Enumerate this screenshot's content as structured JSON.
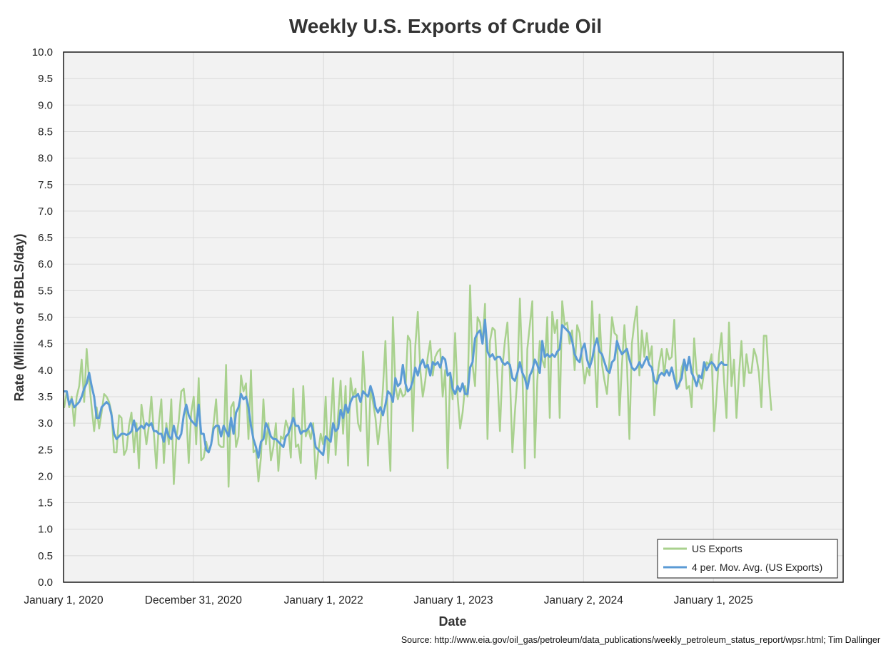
{
  "chart_data": {
    "type": "line",
    "title": "Weekly U.S. Exports of Crude Oil",
    "xlabel": "Date",
    "ylabel": "Rate (Millions of BBLS/day)",
    "source": "Source: http://www.eia.gov/oil_gas/petroleum/data_publications/weekly_petroleum_status_report/wpsr.html; Tim Dallinger",
    "ylim": [
      0,
      10
    ],
    "ytick_step": 0.5,
    "yticks": [
      "0.0",
      "0.5",
      "1.0",
      "1.5",
      "2.0",
      "2.5",
      "3.0",
      "3.5",
      "4.0",
      "4.5",
      "5.0",
      "5.5",
      "6.0",
      "6.5",
      "7.0",
      "7.5",
      "8.0",
      "8.5",
      "9.0",
      "9.5",
      "10.0"
    ],
    "xlim": [
      "2020-01-01",
      "2026-01-01"
    ],
    "xticks": [
      {
        "date": "2020-01-01",
        "label": "January 1, 2020"
      },
      {
        "date": "2020-12-31",
        "label": "December 31, 2020"
      },
      {
        "date": "2022-01-01",
        "label": "January 1, 2022"
      },
      {
        "date": "2023-01-01",
        "label": "January 1, 2023"
      },
      {
        "date": "2024-01-02",
        "label": "January 2, 2024"
      },
      {
        "date": "2025-01-01",
        "label": "January 1, 2025"
      }
    ],
    "grid": true,
    "legend_position": "bottom-right",
    "colors": {
      "exports": "#a9d18e",
      "moving_avg": "#5b9bd5",
      "plot_bg": "#f2f2f2",
      "grid": "#d9d9d9"
    },
    "series": [
      {
        "name": "US Exports",
        "start_date": "2020-01-03",
        "interval_days": 7,
        "values": [
          3.3,
          3.6,
          3.3,
          3.5,
          2.95,
          3.5,
          3.7,
          4.2,
          3.4,
          4.4,
          3.8,
          3.3,
          2.85,
          3.3,
          2.9,
          3.2,
          3.55,
          3.5,
          3.4,
          3.2,
          2.45,
          2.45,
          3.15,
          3.1,
          2.4,
          2.5,
          2.95,
          3.2,
          2.45,
          3.0,
          2.15,
          3.35,
          3.0,
          2.6,
          2.95,
          3.5,
          2.8,
          2.15,
          3.0,
          3.45,
          2.25,
          3.0,
          2.6,
          3.45,
          1.85,
          2.7,
          3.05,
          3.6,
          3.65,
          3.2,
          2.25,
          3.2,
          3.5,
          2.6,
          3.85,
          2.3,
          2.35,
          2.65,
          2.45,
          2.6,
          3.0,
          3.45,
          2.6,
          2.55,
          2.55,
          4.1,
          1.8,
          3.3,
          3.4,
          2.55,
          2.75,
          3.9,
          3.6,
          3.75,
          2.7,
          4.0,
          2.45,
          2.5,
          1.9,
          2.35,
          3.45,
          2.6,
          3.0,
          2.3,
          2.55,
          3.0,
          2.1,
          2.75,
          2.7,
          3.05,
          2.9,
          2.35,
          3.65,
          2.55,
          2.6,
          2.25,
          3.7,
          2.75,
          2.9,
          2.7,
          3.0,
          1.95,
          2.45,
          2.8,
          2.6,
          3.5,
          2.25,
          3.0,
          3.85,
          2.4,
          3.15,
          3.8,
          2.8,
          3.7,
          2.2,
          3.85,
          3.5,
          3.65,
          3.0,
          2.85,
          4.35,
          3.55,
          2.2,
          3.65,
          3.4,
          3.1,
          2.6,
          3.0,
          3.65,
          4.55,
          3.0,
          2.1,
          5.0,
          3.7,
          3.45,
          3.65,
          3.5,
          3.55,
          4.65,
          4.55,
          2.85,
          4.45,
          5.1,
          4.0,
          3.5,
          3.8,
          4.25,
          4.55,
          3.9,
          4.25,
          4.35,
          4.4,
          3.5,
          4.0,
          2.15,
          3.95,
          3.45,
          4.7,
          3.5,
          2.9,
          3.2,
          3.7,
          3.5,
          5.6,
          4.1,
          3.7,
          5.0,
          4.9,
          4.5,
          5.25,
          2.7,
          4.55,
          4.8,
          4.75,
          3.85,
          2.85,
          4.05,
          4.55,
          4.9,
          3.9,
          2.45,
          3.2,
          3.85,
          5.35,
          4.0,
          2.15,
          4.4,
          4.85,
          5.3,
          2.35,
          3.8,
          4.55,
          4.2,
          4.05,
          5.0,
          3.1,
          5.1,
          4.7,
          4.95,
          3.1,
          5.3,
          4.85,
          4.9,
          4.5,
          4.75,
          4.0,
          4.85,
          4.7,
          4.2,
          3.75,
          4.05,
          3.9,
          5.3,
          4.3,
          3.3,
          5.05,
          4.1,
          3.8,
          3.55,
          4.2,
          5.0,
          4.7,
          4.65,
          3.15,
          4.1,
          4.85,
          4.15,
          2.7,
          4.5,
          4.9,
          5.2,
          3.9,
          4.75,
          4.25,
          4.7,
          4.2,
          4.45,
          3.15,
          3.8,
          4.15,
          4.4,
          3.9,
          4.4,
          4.2,
          4.25,
          4.95,
          3.65,
          3.7,
          4.05,
          4.2,
          3.65,
          3.7,
          3.3,
          4.6,
          3.95,
          3.8,
          3.65,
          3.95,
          4.15,
          4.1,
          4.3,
          2.85,
          3.5,
          4.3,
          4.7,
          3.8,
          3.1,
          4.9,
          3.7,
          4.2,
          3.1,
          3.9,
          4.55,
          3.7,
          4.3,
          3.95,
          3.95,
          4.4,
          4.25,
          3.95,
          3.3,
          4.65,
          4.65,
          3.85,
          3.25
        ]
      },
      {
        "name": "4 per. Mov. Avg. (US Exports)",
        "start_date": "2020-01-03",
        "interval_days": 7,
        "values": [
          3.6,
          3.6,
          3.35,
          3.45,
          3.3,
          3.35,
          3.4,
          3.5,
          3.65,
          3.75,
          3.95,
          3.7,
          3.5,
          3.1,
          3.1,
          3.3,
          3.35,
          3.4,
          3.35,
          3.15,
          2.8,
          2.7,
          2.75,
          2.8,
          2.8,
          2.78,
          2.8,
          2.85,
          3.05,
          2.85,
          2.9,
          2.95,
          2.9,
          3.0,
          2.95,
          3.0,
          2.85,
          2.85,
          2.8,
          2.8,
          2.65,
          2.9,
          2.75,
          2.7,
          2.95,
          2.75,
          2.7,
          2.8,
          3.15,
          3.35,
          3.15,
          3.05,
          3.0,
          2.95,
          3.35,
          2.8,
          2.8,
          2.5,
          2.45,
          2.6,
          2.9,
          2.95,
          2.95,
          2.75,
          2.95,
          2.85,
          2.75,
          3.1,
          2.8,
          3.2,
          3.3,
          3.55,
          3.45,
          3.5,
          3.3,
          2.95,
          2.7,
          2.55,
          2.35,
          2.65,
          2.7,
          3.0,
          2.9,
          2.75,
          2.7,
          2.7,
          2.65,
          2.6,
          2.55,
          2.75,
          2.8,
          2.95,
          3.1,
          2.95,
          2.95,
          2.8,
          2.85,
          2.85,
          2.9,
          3.0,
          2.85,
          2.55,
          2.5,
          2.45,
          2.4,
          2.75,
          2.7,
          2.65,
          3.0,
          2.85,
          2.9,
          3.25,
          3.1,
          3.35,
          3.2,
          3.4,
          3.5,
          3.5,
          3.55,
          3.4,
          3.6,
          3.55,
          3.5,
          3.7,
          3.55,
          3.3,
          3.2,
          3.3,
          3.15,
          3.35,
          3.6,
          3.55,
          3.4,
          3.85,
          3.7,
          3.75,
          4.1,
          3.75,
          3.6,
          3.65,
          3.8,
          4.05,
          3.9,
          4.1,
          4.2,
          4.05,
          4.1,
          3.9,
          4.15,
          4.1,
          4.15,
          4.05,
          4.25,
          4.2,
          3.9,
          3.95,
          3.65,
          3.55,
          3.7,
          3.6,
          3.75,
          3.55,
          3.55,
          4.05,
          4.15,
          4.6,
          4.7,
          4.75,
          4.5,
          4.95,
          4.35,
          4.25,
          4.3,
          4.2,
          4.25,
          4.25,
          4.15,
          4.1,
          4.15,
          4.1,
          3.85,
          3.8,
          3.95,
          4.15,
          3.95,
          3.85,
          3.65,
          3.9,
          4.0,
          4.2,
          4.1,
          3.95,
          4.55,
          4.25,
          4.3,
          4.25,
          4.3,
          4.25,
          4.35,
          4.4,
          4.85,
          4.8,
          4.75,
          4.7,
          4.55,
          4.3,
          4.2,
          4.15,
          4.4,
          4.5,
          4.2,
          4.05,
          4.2,
          4.45,
          4.6,
          4.35,
          4.3,
          4.15,
          4.0,
          3.95,
          4.15,
          4.2,
          4.55,
          4.4,
          4.3,
          4.35,
          4.4,
          4.2,
          4.05,
          4.0,
          4.05,
          4.15,
          4.05,
          4.15,
          4.25,
          4.1,
          4.05,
          3.8,
          3.75,
          3.9,
          3.95,
          3.9,
          4.0,
          3.9,
          4.05,
          3.85,
          3.65,
          3.75,
          3.85,
          4.2,
          4.0,
          4.25,
          3.95,
          3.85,
          3.7,
          3.9,
          3.85,
          4.15,
          4.0,
          4.1,
          4.15,
          4.1,
          4.0,
          4.1,
          4.15,
          4.1,
          4.1
        ]
      }
    ]
  }
}
